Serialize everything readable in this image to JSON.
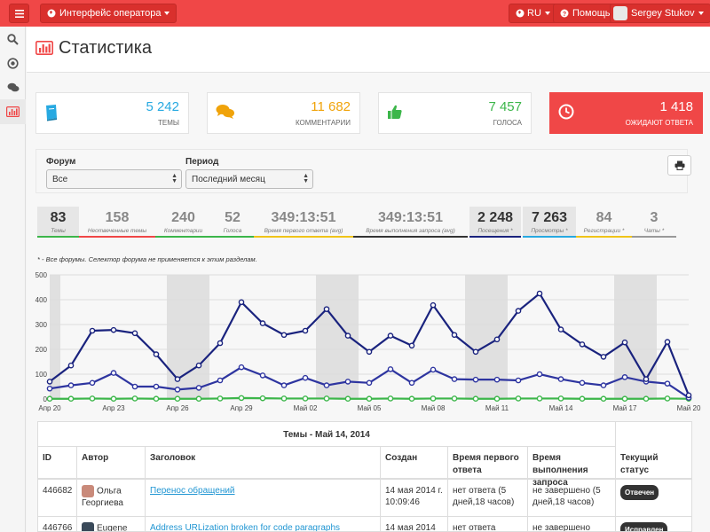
{
  "topbar": {
    "menu_icon": "hamburger-icon",
    "operator_label": "Интерфейс оператора",
    "lang_label": "RU",
    "help_label": "Помощь",
    "user_name": "Sergey Stukov"
  },
  "sidebar": {
    "items": [
      "search-icon",
      "dashboard-icon",
      "comments-icon",
      "statistics-icon"
    ]
  },
  "page": {
    "title": "Статистика"
  },
  "stats": [
    {
      "value": "5 242",
      "label": "ТЕМЫ",
      "icon": "book-icon",
      "color": "#27a9e1"
    },
    {
      "value": "11 682",
      "label": "КОММЕНТАРИИ",
      "icon": "comments-icon",
      "color": "#f0a30a"
    },
    {
      "value": "7 457",
      "label": "ГОЛОСА",
      "icon": "thumbs-up-icon",
      "color": "#3cb64a"
    },
    {
      "value": "1 418",
      "label": "ОЖИДАЮТ ОТВЕТА",
      "icon": "clock-icon",
      "color": "#f04747"
    }
  ],
  "filters": {
    "forum_label": "Форум",
    "forum_value": "Все",
    "period_label": "Период",
    "period_value": "Последний месяц"
  },
  "metrics": [
    {
      "value": "83",
      "label": "Темы",
      "color": "#3cb64a",
      "dark": true
    },
    {
      "value": "158",
      "label": "Неотвеченные темы",
      "color": "#f04747",
      "dark": false
    },
    {
      "value": "240",
      "label": "Комментарии",
      "color": "#3cb64a",
      "dark": false
    },
    {
      "value": "52",
      "label": "Голоса",
      "color": "#3cb64a",
      "dark": false
    },
    {
      "value": "349:13:51",
      "label": "Время первого ответа (avg)",
      "color": "#f0c419",
      "dark": false
    },
    {
      "value": "349:13:51",
      "label": "Время выполнения запроса (avg)",
      "color": "#333333",
      "dark": false
    },
    {
      "value": "2 248",
      "label": "Посещения *",
      "color": "#1a237e",
      "dark": true
    },
    {
      "value": "7 263",
      "label": "Просмотры *",
      "color": "#27a9e1",
      "dark": true
    },
    {
      "value": "84",
      "label": "Регистрации *",
      "color": "#f0c419",
      "dark": false
    },
    {
      "value": "3",
      "label": "Чаты *",
      "color": "#999999",
      "dark": false
    }
  ],
  "note": "* - Все форумы. Селектор форума не применяется к этим разделам.",
  "chart_data": {
    "type": "line",
    "x": [
      "Апр 20",
      "",
      "",
      "Апр 23",
      "",
      "",
      "Апр 26",
      "",
      "",
      "Апр 29",
      "",
      "",
      "Май 02",
      "",
      "",
      "Май 05",
      "",
      "",
      "Май 08",
      "",
      "",
      "Май 11",
      "",
      "",
      "Май 14",
      "",
      "",
      "Май 17",
      "",
      "",
      "Май 20"
    ],
    "y_ticks": [
      0,
      100,
      200,
      300,
      400,
      500
    ],
    "ylim": [
      0,
      500
    ],
    "weekend_bands": [
      [
        0,
        0.5
      ],
      [
        5.5,
        7.5
      ],
      [
        12.5,
        14.5
      ],
      [
        19.5,
        21.5
      ],
      [
        26.5,
        28.5
      ]
    ],
    "series": [
      {
        "color": "#1a237e",
        "values": [
          70,
          135,
          275,
          278,
          265,
          180,
          80,
          135,
          225,
          390,
          305,
          258,
          275,
          362,
          255,
          190,
          255,
          215,
          378,
          258,
          190,
          240,
          355,
          425,
          280,
          220,
          170,
          228,
          80,
          230,
          15
        ]
      },
      {
        "color": "#2e35a0",
        "values": [
          42,
          55,
          65,
          105,
          50,
          50,
          38,
          45,
          75,
          128,
          95,
          55,
          85,
          55,
          70,
          65,
          120,
          65,
          118,
          80,
          78,
          78,
          75,
          100,
          80,
          65,
          55,
          88,
          70,
          62,
          5
        ]
      },
      {
        "color": "#3cb64a",
        "values": [
          1,
          1,
          2,
          1,
          2,
          1,
          1,
          1,
          2,
          4,
          3,
          2,
          2,
          2,
          1,
          1,
          2,
          1,
          2,
          2,
          1,
          1,
          2,
          2,
          2,
          1,
          1,
          1,
          1,
          2,
          1
        ]
      }
    ]
  },
  "table": {
    "caption": "Темы - Май 14, 2014",
    "columns": [
      "ID",
      "Автор",
      "Заголовок",
      "Создан",
      "Время первого ответа",
      "Время выполнения запроса",
      "Текущий статус"
    ],
    "rows": [
      {
        "id": "446682",
        "author": "Ольга Георгиева",
        "title": "Перенос обращений",
        "created": "14 мая 2014 г. 10:09:46",
        "first_response": "нет ответа (5 дней,18 часов)",
        "resolution": "не завершено (5 дней,18 часов)",
        "status": "Отвечен"
      },
      {
        "id": "446766",
        "author": "Eugene",
        "title": "Address URLization broken for code paragraphs",
        "created": "14 мая 2014",
        "first_response": "нет ответа",
        "resolution": "не завершено",
        "status": "Исправлен"
      }
    ]
  }
}
